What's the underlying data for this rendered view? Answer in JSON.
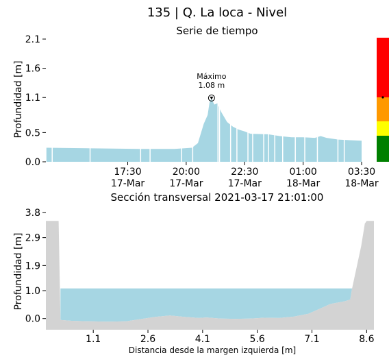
{
  "title": "135 | Q. La loca - Nivel",
  "chart_data": [
    {
      "type": "area",
      "title": "Serie de tiempo",
      "ylabel": "Profundidad [m]",
      "xlabel": "",
      "x_range": [
        "2021-03-17 14:00",
        "2021-03-18 03:30"
      ],
      "ylim": [
        0.0,
        2.1
      ],
      "yticks": [
        {
          "value": 0.0,
          "label": "0.0"
        },
        {
          "value": 0.5,
          "label": "0.5"
        },
        {
          "value": 1.1,
          "label": "1.1"
        },
        {
          "value": 1.6,
          "label": "1.6"
        },
        {
          "value": 2.1,
          "label": "2.1"
        }
      ],
      "xticks": [
        {
          "time": "2021-03-17 17:30",
          "line1": "17:30",
          "line2": "17-Mar"
        },
        {
          "time": "2021-03-17 20:00",
          "line1": "20:00",
          "line2": "17-Mar"
        },
        {
          "time": "2021-03-17 22:30",
          "line1": "22:30",
          "line2": "17-Mar"
        },
        {
          "time": "2021-03-18 01:00",
          "line1": "01:00",
          "line2": "18-Mar"
        },
        {
          "time": "2021-03-18 03:30",
          "line1": "03:30",
          "line2": "18-Mar"
        }
      ],
      "series": [
        {
          "color": "#a6d6e3",
          "points": [
            [
              "2021-03-17 14:00",
              0.24
            ],
            [
              "2021-03-17 16:00",
              0.23
            ],
            [
              "2021-03-17 18:00",
              0.22
            ],
            [
              "2021-03-17 19:30",
              0.22
            ],
            [
              "2021-03-17 20:15",
              0.24
            ],
            [
              "2021-03-17 20:30",
              0.32
            ],
            [
              "2021-03-17 20:45",
              0.65
            ],
            [
              "2021-03-17 20:55",
              0.8
            ],
            [
              "2021-03-17 21:00",
              1.02
            ],
            [
              "2021-03-17 21:05",
              1.08
            ],
            [
              "2021-03-17 21:12",
              0.98
            ],
            [
              "2021-03-17 21:20",
              1.0
            ],
            [
              "2021-03-17 21:30",
              0.85
            ],
            [
              "2021-03-17 21:45",
              0.68
            ],
            [
              "2021-03-17 22:00",
              0.6
            ],
            [
              "2021-03-17 22:15",
              0.55
            ],
            [
              "2021-03-17 22:30",
              0.52
            ],
            [
              "2021-03-17 22:45",
              0.48
            ],
            [
              "2021-03-17 23:30",
              0.47
            ],
            [
              "2021-03-18 00:00",
              0.44
            ],
            [
              "2021-03-18 00:30",
              0.42
            ],
            [
              "2021-03-18 01:00",
              0.42
            ],
            [
              "2021-03-18 01:30",
              0.41
            ],
            [
              "2021-03-18 01:45",
              0.44
            ],
            [
              "2021-03-18 02:00",
              0.41
            ],
            [
              "2021-03-18 02:30",
              0.38
            ],
            [
              "2021-03-18 03:00",
              0.37
            ],
            [
              "2021-03-18 03:30",
              0.36
            ]
          ]
        }
      ],
      "annotation": {
        "time": "2021-03-17 21:05",
        "value": 1.08,
        "line1": "Máximo",
        "line2": "1.08 m"
      },
      "alert_scale": [
        {
          "color": "#ff0000"
        },
        {
          "color": "#ff9900"
        },
        {
          "color": "#ffff00"
        },
        {
          "color": "#008000"
        }
      ],
      "grid": false
    },
    {
      "type": "area",
      "title": "Sección transversal 2021-03-17 21:01:00",
      "xlabel": "Distancia desde la margen izquierda [m]",
      "ylabel": "Profundidad [m]",
      "xlim": [
        -0.2,
        8.8
      ],
      "ylim": [
        -0.4,
        3.8
      ],
      "yticks": [
        {
          "value": 0.0,
          "label": "0.0"
        },
        {
          "value": 1.0,
          "label": "1.0"
        },
        {
          "value": 1.9,
          "label": "1.9"
        },
        {
          "value": 2.9,
          "label": "2.9"
        },
        {
          "value": 3.8,
          "label": "3.8"
        }
      ],
      "xticks": [
        {
          "value": 1.1,
          "label": "1.1"
        },
        {
          "value": 2.6,
          "label": "2.6"
        },
        {
          "value": 4.1,
          "label": "4.1"
        },
        {
          "value": 5.6,
          "label": "5.6"
        },
        {
          "value": 7.1,
          "label": "7.1"
        },
        {
          "value": 8.6,
          "label": "8.6"
        }
      ],
      "water_level": 1.08,
      "water_color": "#a6d6e3",
      "ground_color": "#d3d3d3",
      "ground_profile": [
        [
          -0.2,
          3.5
        ],
        [
          0.15,
          3.5
        ],
        [
          0.2,
          -0.05
        ],
        [
          0.5,
          -0.08
        ],
        [
          1.0,
          -0.1
        ],
        [
          1.5,
          -0.11
        ],
        [
          2.0,
          -0.1
        ],
        [
          2.4,
          -0.02
        ],
        [
          2.8,
          0.06
        ],
        [
          3.2,
          0.11
        ],
        [
          3.6,
          0.06
        ],
        [
          4.0,
          0.02
        ],
        [
          4.2,
          0.04
        ],
        [
          4.6,
          0.0
        ],
        [
          5.0,
          -0.01
        ],
        [
          5.4,
          0.0
        ],
        [
          5.8,
          0.03
        ],
        [
          6.2,
          0.02
        ],
        [
          6.6,
          0.07
        ],
        [
          7.0,
          0.17
        ],
        [
          7.4,
          0.4
        ],
        [
          7.6,
          0.52
        ],
        [
          8.0,
          0.62
        ],
        [
          8.15,
          0.68
        ],
        [
          8.2,
          1.08
        ],
        [
          8.45,
          2.6
        ],
        [
          8.55,
          3.4
        ],
        [
          8.6,
          3.5
        ],
        [
          8.8,
          3.5
        ]
      ],
      "grid": false
    }
  ]
}
